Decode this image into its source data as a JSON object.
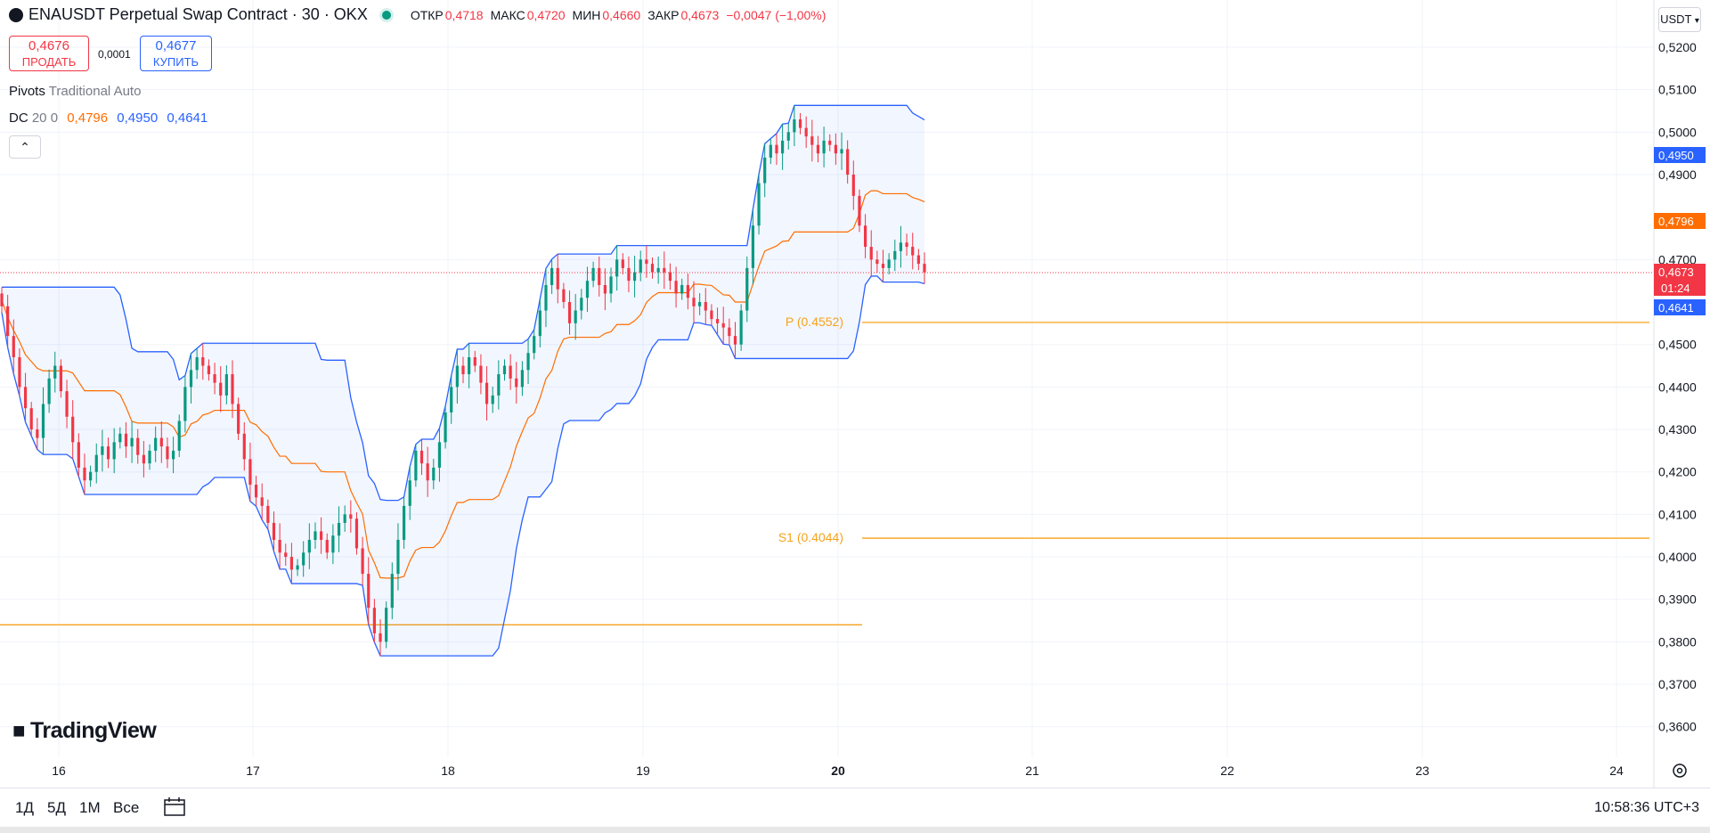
{
  "header": {
    "symbol_title": "ENAUSDT Perpetual Swap Contract · 30 · OKX",
    "ohlc": [
      {
        "label": "ОТКР",
        "value": "0,4718"
      },
      {
        "label": "МАКС",
        "value": "0,4720"
      },
      {
        "label": "МИН",
        "value": "0,4660"
      },
      {
        "label": "ЗАКР",
        "value": "0,4673"
      }
    ],
    "change": "−0,0047 (−1,00%)"
  },
  "trade": {
    "sell_price": "0,4676",
    "sell_label": "ПРОДАТЬ",
    "spread": "0,0001",
    "buy_price": "0,4677",
    "buy_label": "КУПИТЬ"
  },
  "indicators": {
    "pivots_name": "Pivots",
    "pivots_params": "Traditional Auto",
    "dc_name": "DC",
    "dc_params": "20 0",
    "dc_mid": "0,4796",
    "dc_upper": "0,4950",
    "dc_lower": "0,4641"
  },
  "currency": "USDT",
  "price_tags": {
    "upper": "0,4950",
    "mid": "0,4796",
    "last": "0,4673",
    "countdown": "01:24",
    "lower": "0,4641"
  },
  "pivot_labels": {
    "p": "P (0.4552)",
    "s1": "S1 (0.4044)"
  },
  "bottom": {
    "ranges": [
      "1Д",
      "5Д",
      "1М",
      "Все"
    ],
    "clock": "10:58:36 UTC+3"
  },
  "logo_text": "TradingView",
  "colors": {
    "up": "#089981",
    "down": "#f23645",
    "dc_band": "#2962ff",
    "dc_mid": "#ff6d00",
    "pivot": "#f7a21b"
  },
  "chart_data": {
    "type": "candlestick",
    "timeframe": "30",
    "y_ticks": [
      "0,5200",
      "0,5100",
      "0,5000",
      "0,4900",
      "0,4700",
      "0,4500",
      "0,4400",
      "0,4300",
      "0,4200",
      "0,4100",
      "0,4000",
      "0,3900",
      "0,3800",
      "0,3700",
      "0,3600"
    ],
    "x_ticks": [
      "16",
      "17",
      "18",
      "19",
      "20",
      "21",
      "22",
      "23",
      "24"
    ],
    "ylim": [
      0.355,
      0.524
    ],
    "pivots": {
      "P": 0.4552,
      "S1": 0.4044,
      "S2": 0.384
    },
    "donchian_last": {
      "upper": 0.495,
      "mid": 0.4796,
      "lower": 0.4641
    },
    "last_price": 0.4673,
    "closes": [
      0.459,
      0.452,
      0.447,
      0.44,
      0.435,
      0.43,
      0.428,
      0.436,
      0.442,
      0.445,
      0.439,
      0.433,
      0.427,
      0.421,
      0.418,
      0.42,
      0.424,
      0.426,
      0.423,
      0.427,
      0.429,
      0.426,
      0.428,
      0.424,
      0.422,
      0.425,
      0.428,
      0.426,
      0.423,
      0.425,
      0.432,
      0.44,
      0.444,
      0.447,
      0.445,
      0.443,
      0.441,
      0.438,
      0.443,
      0.436,
      0.429,
      0.423,
      0.417,
      0.414,
      0.412,
      0.408,
      0.404,
      0.401,
      0.4,
      0.397,
      0.398,
      0.401,
      0.404,
      0.406,
      0.404,
      0.401,
      0.405,
      0.408,
      0.41,
      0.409,
      0.402,
      0.396,
      0.388,
      0.382,
      0.38,
      0.388,
      0.396,
      0.404,
      0.412,
      0.418,
      0.425,
      0.422,
      0.418,
      0.421,
      0.427,
      0.434,
      0.44,
      0.445,
      0.443,
      0.447,
      0.445,
      0.441,
      0.436,
      0.438,
      0.443,
      0.445,
      0.442,
      0.44,
      0.444,
      0.448,
      0.452,
      0.458,
      0.464,
      0.468,
      0.463,
      0.46,
      0.455,
      0.458,
      0.461,
      0.465,
      0.468,
      0.464,
      0.462,
      0.466,
      0.47,
      0.468,
      0.465,
      0.467,
      0.47,
      0.469,
      0.467,
      0.468,
      0.467,
      0.465,
      0.462,
      0.464,
      0.461,
      0.459,
      0.46,
      0.458,
      0.456,
      0.455,
      0.454,
      0.452,
      0.45,
      0.458,
      0.468,
      0.478,
      0.488,
      0.494,
      0.497,
      0.495,
      0.498,
      0.5,
      0.503,
      0.501,
      0.499,
      0.497,
      0.495,
      0.498,
      0.497,
      0.495,
      0.496,
      0.49,
      0.485,
      0.478,
      0.473,
      0.47,
      0.469,
      0.468,
      0.47,
      0.472,
      0.474,
      0.473,
      0.471,
      0.469,
      0.467
    ]
  }
}
